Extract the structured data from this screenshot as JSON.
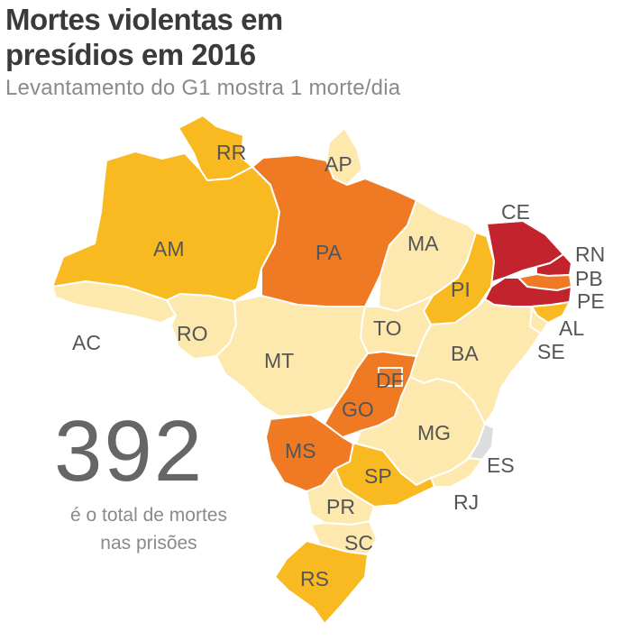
{
  "title": {
    "line1": "Mortes violentas em",
    "line2": "presídios em 2016"
  },
  "subtitle": "Levantamento do G1 mostra 1 morte/dia",
  "colors": {
    "none": "#fde9ad",
    "low": "#f9b920",
    "medium": "#f07a23",
    "high": "#c2232c",
    "no_data": "#dddddd",
    "border": "#ffffff",
    "label_text": "#555555",
    "total_text": "#666666"
  },
  "states": [
    {
      "code": "AC",
      "level": "none"
    },
    {
      "code": "AM",
      "level": "low"
    },
    {
      "code": "RR",
      "level": "low"
    },
    {
      "code": "AP",
      "level": "none"
    },
    {
      "code": "PA",
      "level": "medium"
    },
    {
      "code": "MA",
      "level": "none"
    },
    {
      "code": "PI",
      "level": "low"
    },
    {
      "code": "CE",
      "level": "high"
    },
    {
      "code": "RN",
      "level": "high"
    },
    {
      "code": "PB",
      "level": "medium"
    },
    {
      "code": "PE",
      "level": "high"
    },
    {
      "code": "AL",
      "level": "low"
    },
    {
      "code": "SE",
      "level": "none"
    },
    {
      "code": "BA",
      "level": "none"
    },
    {
      "code": "TO",
      "level": "none"
    },
    {
      "code": "RO",
      "level": "none"
    },
    {
      "code": "MT",
      "level": "none"
    },
    {
      "code": "GO",
      "level": "medium"
    },
    {
      "code": "DF",
      "level": "medium"
    },
    {
      "code": "MS",
      "level": "medium"
    },
    {
      "code": "MG",
      "level": "none"
    },
    {
      "code": "ES",
      "level": "no_data"
    },
    {
      "code": "RJ",
      "level": "none"
    },
    {
      "code": "SP",
      "level": "low"
    },
    {
      "code": "PR",
      "level": "none"
    },
    {
      "code": "SC",
      "level": "none"
    },
    {
      "code": "RS",
      "level": "low"
    }
  ],
  "total": {
    "value": "392",
    "line1": "é o total de mortes",
    "line2": "nas prisões"
  }
}
